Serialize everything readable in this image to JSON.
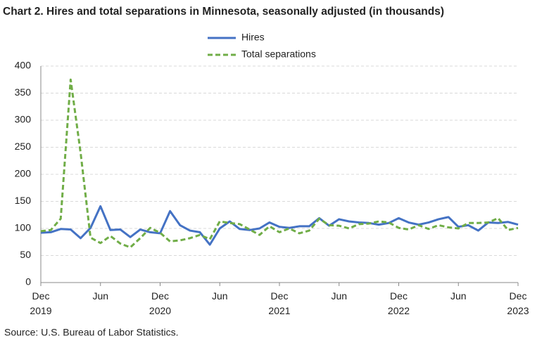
{
  "chart_data": {
    "type": "line",
    "title": "Chart 2. Hires and total separations in Minnesota, seasonally adjusted (in thousands)",
    "source": "Source: U.S. Bureau of Labor Statistics.",
    "categories": [
      "Dec 2019",
      null,
      null,
      null,
      null,
      null,
      "Jun",
      null,
      null,
      null,
      null,
      null,
      "Dec 2020",
      null,
      null,
      null,
      null,
      null,
      "Jun",
      null,
      null,
      null,
      null,
      null,
      "Dec 2021",
      null,
      null,
      null,
      null,
      null,
      "Jun",
      null,
      null,
      null,
      null,
      null,
      "Dec 2022",
      null,
      null,
      null,
      null,
      null,
      "Jun",
      null,
      null,
      null,
      null,
      null,
      "Dec 2023"
    ],
    "series": [
      {
        "name": "Hires",
        "color": "#4472c4",
        "line_style": "solid",
        "values": [
          92,
          93,
          99,
          98,
          82,
          101,
          141,
          97,
          98,
          84,
          98,
          93,
          91,
          132,
          106,
          96,
          93,
          70,
          100,
          113,
          99,
          97,
          100,
          111,
          103,
          101,
          104,
          104,
          119,
          105,
          117,
          113,
          111,
          110,
          107,
          110,
          119,
          111,
          107,
          111,
          117,
          121,
          103,
          106,
          96,
          111,
          110,
          112,
          107
        ]
      },
      {
        "name": "Total separations",
        "color": "#70ad47",
        "line_style": "dashed",
        "values": [
          95,
          97,
          118,
          375,
          240,
          83,
          73,
          86,
          72,
          65,
          82,
          101,
          92,
          76,
          78,
          82,
          88,
          80,
          113,
          110,
          108,
          98,
          88,
          104,
          93,
          100,
          91,
          96,
          118,
          106,
          105,
          100,
          108,
          109,
          113,
          111,
          101,
          98,
          106,
          99,
          106,
          102,
          100,
          110,
          110,
          111,
          119,
          97,
          101
        ]
      }
    ],
    "ylim": [
      0,
      400
    ],
    "yticks": [
      0,
      50,
      100,
      150,
      200,
      250,
      300,
      350,
      400
    ],
    "grid": true
  }
}
